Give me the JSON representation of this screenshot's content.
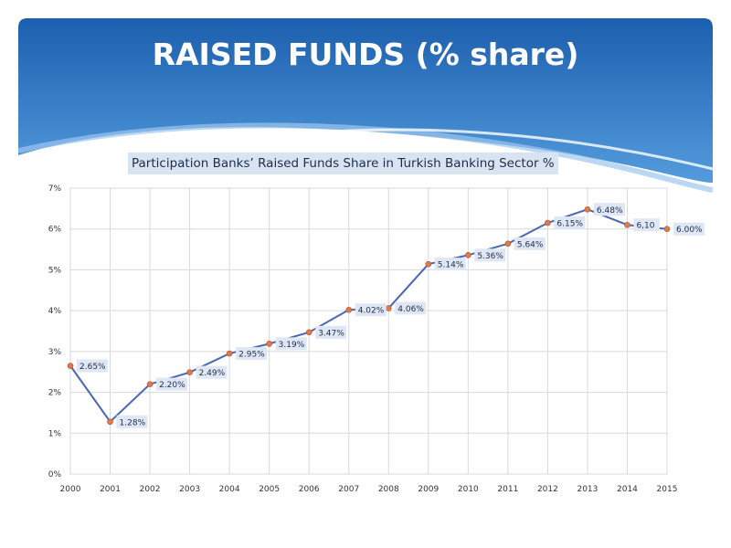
{
  "slide": {
    "title": "RAISED FUNDS (% share)"
  },
  "colors": {
    "banner_top": "#1c5fae",
    "banner_bottom": "#5aa2e2",
    "line": "#4a67b6",
    "marker": "#e07a4a",
    "label_bg": "#dfe6f4"
  },
  "chart_data": {
    "type": "line",
    "title": "Participation Banks’ Raised Funds Share in Turkish Banking Sector %",
    "xlabel": "",
    "ylabel": "",
    "x": [
      "2000",
      "2001",
      "2002",
      "2003",
      "2004",
      "2005",
      "2006",
      "2007",
      "2008",
      "2009",
      "2010",
      "2011",
      "2012",
      "2013",
      "2014",
      "2015"
    ],
    "y_ticks": [
      "0%",
      "1%",
      "2%",
      "3%",
      "4%",
      "5%",
      "6%",
      "7%"
    ],
    "ylim": [
      0,
      7
    ],
    "grid": true,
    "legend": "none",
    "series": [
      {
        "values": [
          2.65,
          1.28,
          2.2,
          2.49,
          2.95,
          3.19,
          3.47,
          4.02,
          4.06,
          5.14,
          5.36,
          5.64,
          6.15,
          6.48,
          6.1,
          6.0
        ],
        "labels": [
          "2.65%",
          "1.28%",
          "2.20%",
          "2.49%",
          "2.95%",
          "3.19%",
          "3.47%",
          "4.02%",
          "4.06%",
          "5.14%",
          "5.36%",
          "5.64%",
          "6.15%",
          "6.48%",
          "6,10",
          "6.00%"
        ]
      }
    ]
  }
}
